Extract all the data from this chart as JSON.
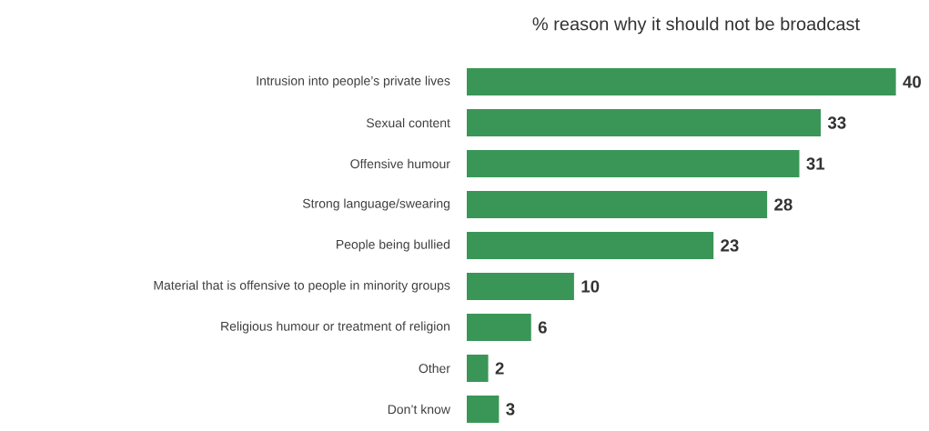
{
  "chart_data": {
    "type": "bar",
    "orientation": "horizontal",
    "title": "% reason why it should not be broadcast",
    "categories": [
      "Intrusion into people’s private lives",
      "Sexual content",
      "Offensive humour",
      "Strong language/swearing",
      "People being bullied",
      "Material that is offensive to people in minority groups",
      "Religious humour or treatment of religion",
      "Other",
      "Don’t know"
    ],
    "values": [
      40,
      33,
      31,
      28,
      23,
      10,
      6,
      2,
      3
    ],
    "color": "#3a9657",
    "data_labels": true
  }
}
